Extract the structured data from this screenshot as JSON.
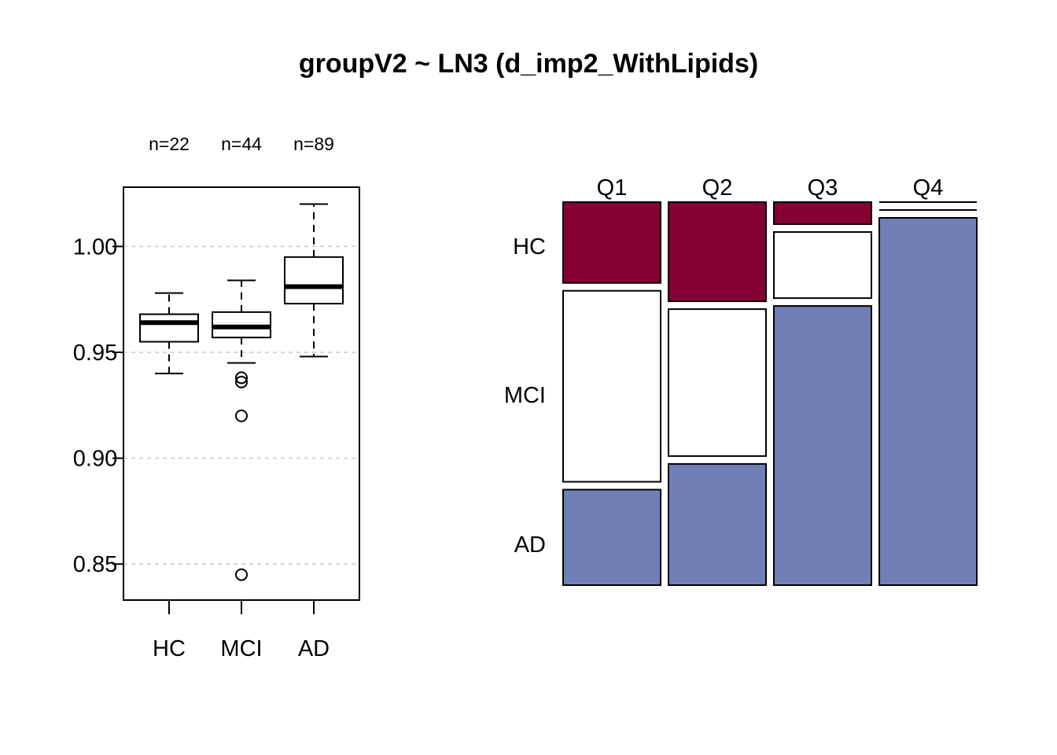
{
  "title": "groupV2 ~ LN3 (d_imp2_WithLipids)",
  "chart_data": [
    {
      "type": "box",
      "categories": [
        "HC",
        "MCI",
        "AD"
      ],
      "counts": [
        "n=22",
        "n=44",
        "n=89"
      ],
      "ylim": [
        0.833,
        1.028
      ],
      "yticks": [
        0.85,
        0.9,
        0.95,
        1.0
      ],
      "ytick_labels": [
        "0.85",
        "0.90",
        "0.95",
        "1.00"
      ],
      "grid_y": true,
      "boxes": [
        {
          "category": "HC",
          "whisker_low": 0.94,
          "q1": 0.955,
          "median": 0.964,
          "q3": 0.968,
          "whisker_high": 0.978,
          "outliers": []
        },
        {
          "category": "MCI",
          "whisker_low": 0.945,
          "q1": 0.957,
          "median": 0.962,
          "q3": 0.969,
          "whisker_high": 0.984,
          "outliers": [
            0.938,
            0.936,
            0.92,
            0.845
          ]
        },
        {
          "category": "AD",
          "whisker_low": 0.948,
          "q1": 0.973,
          "median": 0.981,
          "q3": 0.995,
          "whisker_high": 1.02,
          "outliers": []
        }
      ]
    },
    {
      "type": "mosaic",
      "columns": [
        "Q1",
        "Q2",
        "Q3",
        "Q4"
      ],
      "rows": [
        "HC",
        "MCI",
        "AD"
      ],
      "proportions": [
        [
          0.22,
          0.52,
          0.26
        ],
        [
          0.27,
          0.4,
          0.33
        ],
        [
          0.06,
          0.18,
          0.76
        ],
        [
          0.0,
          0.0,
          1.0
        ]
      ],
      "colors": {
        "HC": "#850032",
        "MCI": "#ffffff",
        "AD": "#7080b6"
      }
    }
  ]
}
